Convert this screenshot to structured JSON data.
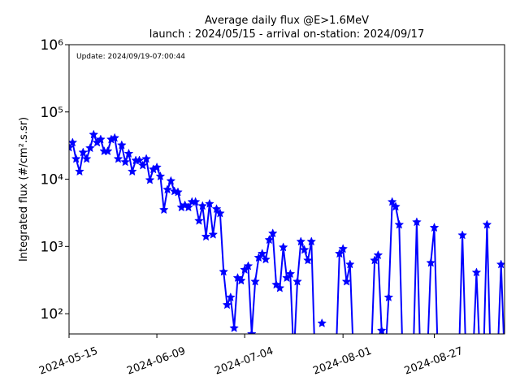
{
  "chart_data": {
    "type": "line",
    "title": "Average daily flux @E>1.6MeV",
    "subtitle": "launch : 2024/05/15 - arrival on-station: 2024/09/17",
    "annotation": "Update: 2024/09/19-07:00:44",
    "y_label": "Integrated flux (#/cm².s.sr)",
    "log_y": true,
    "xlim": [
      "2024-05-15",
      "2024-09-16"
    ],
    "ylim": [
      50,
      1000000
    ],
    "xticks": [
      "2024-05-15",
      "2024-06-09",
      "2024-07-04",
      "2024-08-01",
      "2024-08-27"
    ],
    "yticks": [
      {
        "value": 100,
        "label": "10²"
      },
      {
        "value": 1000,
        "label": "10³"
      },
      {
        "value": 10000,
        "label": "10⁴"
      },
      {
        "value": 100000,
        "label": "10⁵"
      },
      {
        "value": 1000000,
        "label": "10⁶"
      }
    ],
    "x": [
      "2024-05-15",
      "2024-05-16",
      "2024-05-17",
      "2024-05-18",
      "2024-05-19",
      "2024-05-20",
      "2024-05-21",
      "2024-05-22",
      "2024-05-23",
      "2024-05-24",
      "2024-05-25",
      "2024-05-26",
      "2024-05-27",
      "2024-05-28",
      "2024-05-29",
      "2024-05-30",
      "2024-05-31",
      "2024-06-01",
      "2024-06-02",
      "2024-06-03",
      "2024-06-04",
      "2024-06-05",
      "2024-06-06",
      "2024-06-07",
      "2024-06-08",
      "2024-06-09",
      "2024-06-10",
      "2024-06-11",
      "2024-06-12",
      "2024-06-13",
      "2024-06-14",
      "2024-06-15",
      "2024-06-16",
      "2024-06-17",
      "2024-06-18",
      "2024-06-19",
      "2024-06-20",
      "2024-06-21",
      "2024-06-22",
      "2024-06-23",
      "2024-06-24",
      "2024-06-25",
      "2024-06-26",
      "2024-06-27",
      "2024-06-28",
      "2024-06-29",
      "2024-06-30",
      "2024-07-01",
      "2024-07-02",
      "2024-07-03",
      "2024-07-04",
      "2024-07-05",
      "2024-07-06",
      "2024-07-07",
      "2024-07-08",
      "2024-07-09",
      "2024-07-10",
      "2024-07-11",
      "2024-07-12",
      "2024-07-13",
      "2024-07-14",
      "2024-07-15",
      "2024-07-16",
      "2024-07-17",
      "2024-07-18",
      "2024-07-19",
      "2024-07-20",
      "2024-07-21",
      "2024-07-22",
      "2024-07-23",
      "2024-07-24",
      "2024-07-25",
      "2024-07-26",
      "2024-07-27",
      "2024-07-30",
      "2024-07-31",
      "2024-08-01",
      "2024-08-02",
      "2024-08-03",
      "2024-08-04",
      "2024-08-05",
      "2024-08-09",
      "2024-08-10",
      "2024-08-11",
      "2024-08-12",
      "2024-08-13",
      "2024-08-14",
      "2024-08-15",
      "2024-08-16",
      "2024-08-17",
      "2024-08-18",
      "2024-08-19",
      "2024-08-21",
      "2024-08-22",
      "2024-08-23",
      "2024-08-24",
      "2024-08-25",
      "2024-08-26",
      "2024-08-27",
      "2024-08-28",
      "2024-08-29",
      "2024-09-03",
      "2024-09-04",
      "2024-09-05",
      "2024-09-06",
      "2024-09-07",
      "2024-09-08",
      "2024-09-09",
      "2024-09-10",
      "2024-09-11",
      "2024-09-12",
      "2024-09-13",
      "2024-09-14",
      "2024-09-15",
      "2024-09-16"
    ],
    "series": [
      {
        "name": "flux",
        "color": "#0000ff",
        "values": [
          29500,
          35000,
          20000,
          13000,
          25000,
          20000,
          29000,
          46000,
          35000,
          39000,
          26000,
          26000,
          39000,
          41000,
          20000,
          32000,
          18000,
          24000,
          13000,
          19000,
          19000,
          16000,
          20000,
          9700,
          14000,
          15000,
          11000,
          3500,
          7000,
          9400,
          6600,
          6400,
          3800,
          4100,
          3800,
          4600,
          4600,
          2400,
          4000,
          1400,
          4300,
          1500,
          3600,
          3100,
          420,
          135,
          175,
          61,
          340,
          310,
          450,
          510,
          50,
          300,
          680,
          780,
          640,
          1250,
          1560,
          270,
          240,
          970,
          340,
          390,
          0,
          300,
          1180,
          890,
          620,
          1180,
          0,
          null,
          72,
          null,
          0,
          780,
          920,
          300,
          540,
          0,
          null,
          0,
          620,
          740,
          56,
          0,
          175,
          4600,
          3900,
          2100,
          0,
          null,
          0,
          2300,
          0,
          null,
          0,
          570,
          1900,
          0,
          null,
          0,
          1470,
          0,
          null,
          0,
          410,
          0,
          0,
          2100,
          0,
          null,
          0,
          540,
          0
        ]
      }
    ]
  }
}
